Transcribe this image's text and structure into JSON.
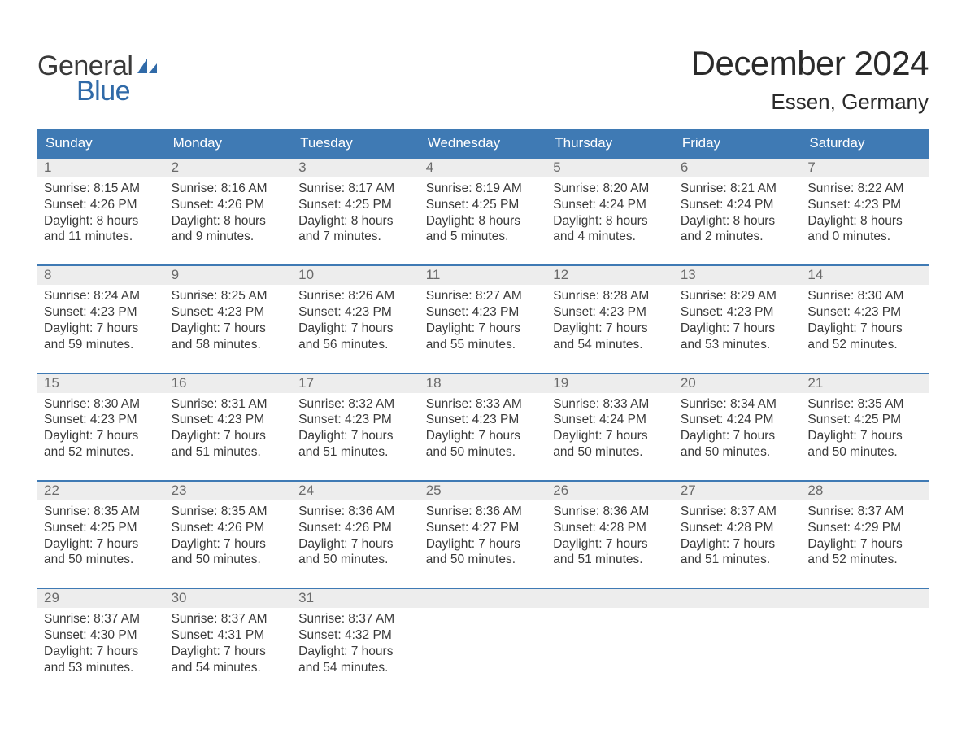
{
  "brand": {
    "word1": "General",
    "word2": "Blue",
    "color1": "#3a3a3a",
    "color2": "#306aa8"
  },
  "title": "December 2024",
  "location": "Essen, Germany",
  "colors": {
    "header_bg": "#3f7ab4",
    "header_text": "#ffffff",
    "daynum_bg": "#ededed",
    "daynum_text": "#6a6a6a",
    "body_text": "#3a3a3a",
    "week_border": "#3f7ab4",
    "page_bg": "#ffffff"
  },
  "fonts": {
    "title_size": 42,
    "location_size": 26,
    "weekday_size": 17,
    "body_size": 15.5
  },
  "weekdays": [
    "Sunday",
    "Monday",
    "Tuesday",
    "Wednesday",
    "Thursday",
    "Friday",
    "Saturday"
  ],
  "weeks": [
    [
      {
        "n": "1",
        "sunrise": "8:15 AM",
        "sunset": "4:26 PM",
        "dl1": "8 hours",
        "dl2": "and 11 minutes."
      },
      {
        "n": "2",
        "sunrise": "8:16 AM",
        "sunset": "4:26 PM",
        "dl1": "8 hours",
        "dl2": "and 9 minutes."
      },
      {
        "n": "3",
        "sunrise": "8:17 AM",
        "sunset": "4:25 PM",
        "dl1": "8 hours",
        "dl2": "and 7 minutes."
      },
      {
        "n": "4",
        "sunrise": "8:19 AM",
        "sunset": "4:25 PM",
        "dl1": "8 hours",
        "dl2": "and 5 minutes."
      },
      {
        "n": "5",
        "sunrise": "8:20 AM",
        "sunset": "4:24 PM",
        "dl1": "8 hours",
        "dl2": "and 4 minutes."
      },
      {
        "n": "6",
        "sunrise": "8:21 AM",
        "sunset": "4:24 PM",
        "dl1": "8 hours",
        "dl2": "and 2 minutes."
      },
      {
        "n": "7",
        "sunrise": "8:22 AM",
        "sunset": "4:23 PM",
        "dl1": "8 hours",
        "dl2": "and 0 minutes."
      }
    ],
    [
      {
        "n": "8",
        "sunrise": "8:24 AM",
        "sunset": "4:23 PM",
        "dl1": "7 hours",
        "dl2": "and 59 minutes."
      },
      {
        "n": "9",
        "sunrise": "8:25 AM",
        "sunset": "4:23 PM",
        "dl1": "7 hours",
        "dl2": "and 58 minutes."
      },
      {
        "n": "10",
        "sunrise": "8:26 AM",
        "sunset": "4:23 PM",
        "dl1": "7 hours",
        "dl2": "and 56 minutes."
      },
      {
        "n": "11",
        "sunrise": "8:27 AM",
        "sunset": "4:23 PM",
        "dl1": "7 hours",
        "dl2": "and 55 minutes."
      },
      {
        "n": "12",
        "sunrise": "8:28 AM",
        "sunset": "4:23 PM",
        "dl1": "7 hours",
        "dl2": "and 54 minutes."
      },
      {
        "n": "13",
        "sunrise": "8:29 AM",
        "sunset": "4:23 PM",
        "dl1": "7 hours",
        "dl2": "and 53 minutes."
      },
      {
        "n": "14",
        "sunrise": "8:30 AM",
        "sunset": "4:23 PM",
        "dl1": "7 hours",
        "dl2": "and 52 minutes."
      }
    ],
    [
      {
        "n": "15",
        "sunrise": "8:30 AM",
        "sunset": "4:23 PM",
        "dl1": "7 hours",
        "dl2": "and 52 minutes."
      },
      {
        "n": "16",
        "sunrise": "8:31 AM",
        "sunset": "4:23 PM",
        "dl1": "7 hours",
        "dl2": "and 51 minutes."
      },
      {
        "n": "17",
        "sunrise": "8:32 AM",
        "sunset": "4:23 PM",
        "dl1": "7 hours",
        "dl2": "and 51 minutes."
      },
      {
        "n": "18",
        "sunrise": "8:33 AM",
        "sunset": "4:23 PM",
        "dl1": "7 hours",
        "dl2": "and 50 minutes."
      },
      {
        "n": "19",
        "sunrise": "8:33 AM",
        "sunset": "4:24 PM",
        "dl1": "7 hours",
        "dl2": "and 50 minutes."
      },
      {
        "n": "20",
        "sunrise": "8:34 AM",
        "sunset": "4:24 PM",
        "dl1": "7 hours",
        "dl2": "and 50 minutes."
      },
      {
        "n": "21",
        "sunrise": "8:35 AM",
        "sunset": "4:25 PM",
        "dl1": "7 hours",
        "dl2": "and 50 minutes."
      }
    ],
    [
      {
        "n": "22",
        "sunrise": "8:35 AM",
        "sunset": "4:25 PM",
        "dl1": "7 hours",
        "dl2": "and 50 minutes."
      },
      {
        "n": "23",
        "sunrise": "8:35 AM",
        "sunset": "4:26 PM",
        "dl1": "7 hours",
        "dl2": "and 50 minutes."
      },
      {
        "n": "24",
        "sunrise": "8:36 AM",
        "sunset": "4:26 PM",
        "dl1": "7 hours",
        "dl2": "and 50 minutes."
      },
      {
        "n": "25",
        "sunrise": "8:36 AM",
        "sunset": "4:27 PM",
        "dl1": "7 hours",
        "dl2": "and 50 minutes."
      },
      {
        "n": "26",
        "sunrise": "8:36 AM",
        "sunset": "4:28 PM",
        "dl1": "7 hours",
        "dl2": "and 51 minutes."
      },
      {
        "n": "27",
        "sunrise": "8:37 AM",
        "sunset": "4:28 PM",
        "dl1": "7 hours",
        "dl2": "and 51 minutes."
      },
      {
        "n": "28",
        "sunrise": "8:37 AM",
        "sunset": "4:29 PM",
        "dl1": "7 hours",
        "dl2": "and 52 minutes."
      }
    ],
    [
      {
        "n": "29",
        "sunrise": "8:37 AM",
        "sunset": "4:30 PM",
        "dl1": "7 hours",
        "dl2": "and 53 minutes."
      },
      {
        "n": "30",
        "sunrise": "8:37 AM",
        "sunset": "4:31 PM",
        "dl1": "7 hours",
        "dl2": "and 54 minutes."
      },
      {
        "n": "31",
        "sunrise": "8:37 AM",
        "sunset": "4:32 PM",
        "dl1": "7 hours",
        "dl2": "and 54 minutes."
      },
      null,
      null,
      null,
      null
    ]
  ],
  "labels": {
    "sunrise": "Sunrise:",
    "sunset": "Sunset:",
    "daylight": "Daylight:"
  }
}
